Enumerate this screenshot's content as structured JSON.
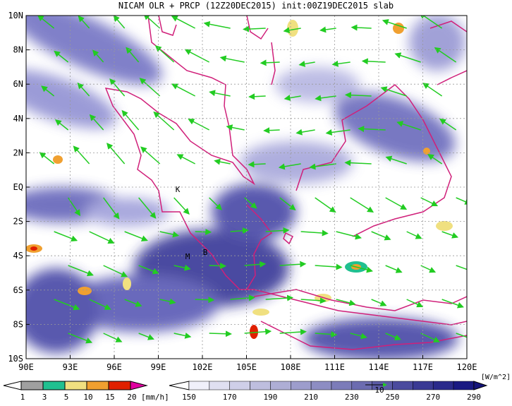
{
  "title": "NICAM OLR + PRCP (12Z20DEC2015) init:00Z19DEC2015 slab",
  "lon_labels": [
    "90E",
    "93E",
    "96E",
    "99E",
    "102E",
    "105E",
    "108E",
    "111E",
    "114E",
    "117E",
    "120E"
  ],
  "lat_labels": [
    "10N",
    "8N",
    "6N",
    "4N",
    "2N",
    "EQ",
    "2S",
    "4S",
    "6S",
    "8S",
    "10S"
  ],
  "places": [
    "K",
    "M",
    "B"
  ],
  "vector_reference": "10",
  "precip_legend": {
    "labels": [
      "1",
      "3",
      "5",
      "10",
      "15",
      "20"
    ],
    "unit": "[mm/h]"
  },
  "olr_legend": {
    "labels": [
      "150",
      "170",
      "190",
      "210",
      "230",
      "250",
      "270",
      "290"
    ],
    "unit": "[W/m^2]"
  }
}
